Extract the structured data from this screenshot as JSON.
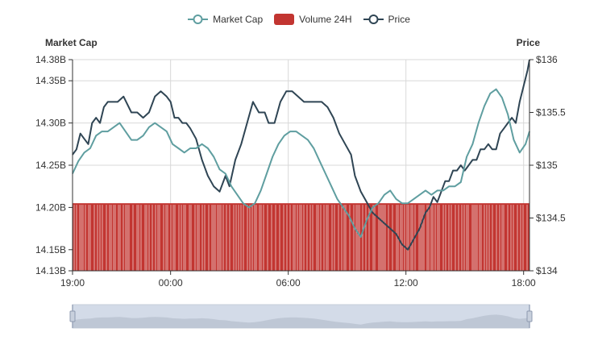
{
  "chart_data": {
    "type": "line",
    "legend": [
      {
        "name": "Market Cap",
        "marker": "line-circle",
        "color": "#5f9ea0"
      },
      {
        "name": "Volume 24H",
        "marker": "rect",
        "color": "#c23531"
      },
      {
        "name": "Price",
        "marker": "line-circle",
        "color": "#2f4554"
      }
    ],
    "y_left": {
      "title": "Market Cap",
      "ticks": [
        "14.13B",
        "14.15B",
        "14.20B",
        "14.25B",
        "14.30B",
        "14.35B",
        "14.38B"
      ],
      "tick_values": [
        14.125,
        14.15,
        14.2,
        14.25,
        14.3,
        14.35,
        14.375
      ],
      "range": [
        14.125,
        14.375
      ]
    },
    "y_right": {
      "title": "Price",
      "ticks": [
        "$134",
        "$134.5",
        "$135",
        "$135.5",
        "$136"
      ],
      "tick_values": [
        134,
        134.5,
        135,
        135.5,
        136
      ],
      "range": [
        134,
        136
      ]
    },
    "x_axis": {
      "ticks": [
        "19:00",
        "00:00",
        "06:00",
        "12:00",
        "18:00"
      ],
      "tick_hours": [
        0,
        5,
        11,
        17,
        23
      ],
      "range_hours": [
        0,
        23.3
      ]
    },
    "grid": true,
    "legend_position": "top-center",
    "series": [
      {
        "name": "Price",
        "axis": "right",
        "x_hours": [
          0,
          0.2,
          0.4,
          0.6,
          0.8,
          1.0,
          1.2,
          1.4,
          1.6,
          1.8,
          2.0,
          2.3,
          2.6,
          3.0,
          3.3,
          3.6,
          3.9,
          4.2,
          4.5,
          4.8,
          5.0,
          5.2,
          5.4,
          5.6,
          5.8,
          6.0,
          6.3,
          6.6,
          6.9,
          7.2,
          7.5,
          7.8,
          8.0,
          8.3,
          8.6,
          8.9,
          9.2,
          9.5,
          9.8,
          10.0,
          10.3,
          10.6,
          10.9,
          11.2,
          11.5,
          11.8,
          12.1,
          12.4,
          12.7,
          13.0,
          13.3,
          13.6,
          13.9,
          14.2,
          14.4,
          14.7,
          15.0,
          15.3,
          15.6,
          15.9,
          16.2,
          16.5,
          16.8,
          17.1,
          17.4,
          17.7,
          18.0,
          18.2,
          18.4,
          18.6,
          18.8,
          19.0,
          19.2,
          19.4,
          19.6,
          19.8,
          20.0,
          20.2,
          20.4,
          20.6,
          20.8,
          21.0,
          21.2,
          21.4,
          21.6,
          21.8,
          22.0,
          22.2,
          22.4,
          22.6,
          22.8,
          23.0,
          23.2,
          23.3
        ],
        "values": [
          135.1,
          135.15,
          135.3,
          135.25,
          135.2,
          135.4,
          135.45,
          135.4,
          135.55,
          135.6,
          135.6,
          135.6,
          135.65,
          135.5,
          135.5,
          135.45,
          135.5,
          135.65,
          135.7,
          135.65,
          135.6,
          135.45,
          135.45,
          135.4,
          135.4,
          135.35,
          135.25,
          135.05,
          134.9,
          134.8,
          134.75,
          134.9,
          134.8,
          135.05,
          135.2,
          135.4,
          135.6,
          135.5,
          135.5,
          135.4,
          135.4,
          135.6,
          135.7,
          135.7,
          135.65,
          135.6,
          135.6,
          135.6,
          135.6,
          135.55,
          135.45,
          135.3,
          135.2,
          135.1,
          134.9,
          134.75,
          134.65,
          134.55,
          134.5,
          134.45,
          134.4,
          134.35,
          134.25,
          134.2,
          134.3,
          134.4,
          134.55,
          134.6,
          134.7,
          134.65,
          134.75,
          134.85,
          134.85,
          134.95,
          134.95,
          135.0,
          134.95,
          135.0,
          135.05,
          135.05,
          135.15,
          135.15,
          135.2,
          135.15,
          135.15,
          135.3,
          135.35,
          135.4,
          135.45,
          135.4,
          135.6,
          135.75,
          135.9,
          136.0
        ]
      },
      {
        "name": "Market Cap",
        "axis": "left",
        "x_hours": [
          0,
          0.3,
          0.6,
          0.9,
          1.2,
          1.5,
          1.8,
          2.1,
          2.4,
          2.7,
          3.0,
          3.3,
          3.6,
          3.9,
          4.2,
          4.5,
          4.8,
          5.1,
          5.4,
          5.7,
          6.0,
          6.3,
          6.6,
          6.9,
          7.2,
          7.5,
          7.8,
          8.1,
          8.4,
          8.7,
          9.0,
          9.3,
          9.6,
          9.9,
          10.2,
          10.5,
          10.8,
          11.1,
          11.4,
          11.7,
          12.0,
          12.3,
          12.6,
          12.9,
          13.2,
          13.5,
          13.8,
          14.1,
          14.4,
          14.7,
          15.0,
          15.3,
          15.6,
          15.9,
          16.2,
          16.5,
          16.8,
          17.1,
          17.4,
          17.7,
          18.0,
          18.3,
          18.6,
          18.9,
          19.2,
          19.5,
          19.8,
          20.1,
          20.4,
          20.7,
          21.0,
          21.3,
          21.6,
          21.9,
          22.2,
          22.5,
          22.8,
          23.1,
          23.3
        ],
        "values": [
          14.24,
          14.255,
          14.265,
          14.27,
          14.285,
          14.29,
          14.29,
          14.295,
          14.3,
          14.29,
          14.28,
          14.28,
          14.285,
          14.295,
          14.3,
          14.295,
          14.29,
          14.275,
          14.27,
          14.265,
          14.27,
          14.27,
          14.275,
          14.27,
          14.26,
          14.245,
          14.24,
          14.225,
          14.215,
          14.205,
          14.2,
          14.205,
          14.22,
          14.24,
          14.26,
          14.275,
          14.285,
          14.29,
          14.29,
          14.285,
          14.28,
          14.27,
          14.255,
          14.24,
          14.225,
          14.21,
          14.2,
          14.19,
          14.175,
          14.165,
          14.185,
          14.2,
          14.205,
          14.215,
          14.22,
          14.21,
          14.205,
          14.205,
          14.21,
          14.215,
          14.22,
          14.215,
          14.22,
          14.22,
          14.225,
          14.225,
          14.23,
          14.26,
          14.275,
          14.3,
          14.32,
          14.335,
          14.34,
          14.33,
          14.31,
          14.28,
          14.265,
          14.275,
          14.29
        ]
      }
    ],
    "volume": {
      "name": "Volume 24H",
      "axis": "left",
      "approx_value": 14.205
    }
  },
  "slider": {
    "start_percent": 0,
    "end_percent": 100
  }
}
